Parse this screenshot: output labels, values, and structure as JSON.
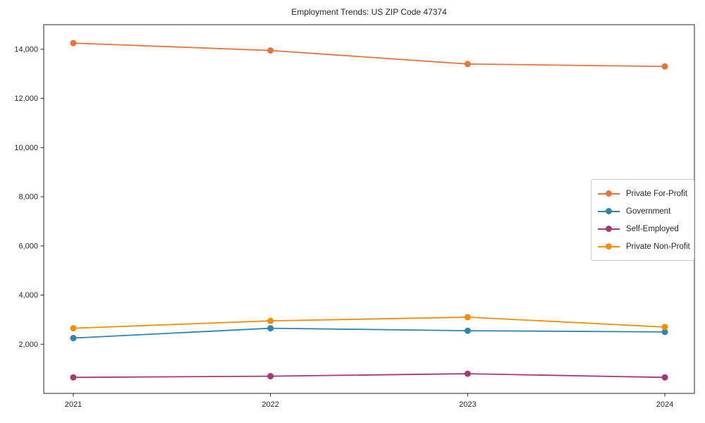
{
  "title": "Employment Trends: US ZIP Code 47374",
  "chart_data": {
    "type": "line",
    "title": "Employment Trends: US ZIP Code 47374",
    "xlabel": "",
    "ylabel": "",
    "x": [
      2021,
      2022,
      2023,
      2024
    ],
    "xtick_labels": [
      "2021",
      "2022",
      "2023",
      "2024"
    ],
    "series": [
      {
        "name": "Private For-Profit",
        "color": "#e8743b",
        "values": [
          14250,
          13950,
          13400,
          13300
        ]
      },
      {
        "name": "Government",
        "color": "#2e86ab",
        "values": [
          2250,
          2650,
          2550,
          2500
        ]
      },
      {
        "name": "Self-Employed",
        "color": "#a23b72",
        "values": [
          650,
          700,
          800,
          650
        ]
      },
      {
        "name": "Private Non-Profit",
        "color": "#f18f01",
        "values": [
          2650,
          2950,
          3100,
          2700
        ]
      }
    ],
    "yticks": [
      2000,
      4000,
      6000,
      8000,
      10000,
      12000,
      14000
    ],
    "ylim": [
      0,
      15000
    ],
    "xlim": [
      2020.85,
      2024.15
    ],
    "grid": false,
    "legend_position": "center right",
    "axis_color": "#262626",
    "marker": "circle",
    "marker_radius": 4.5,
    "line_width": 1.8
  }
}
